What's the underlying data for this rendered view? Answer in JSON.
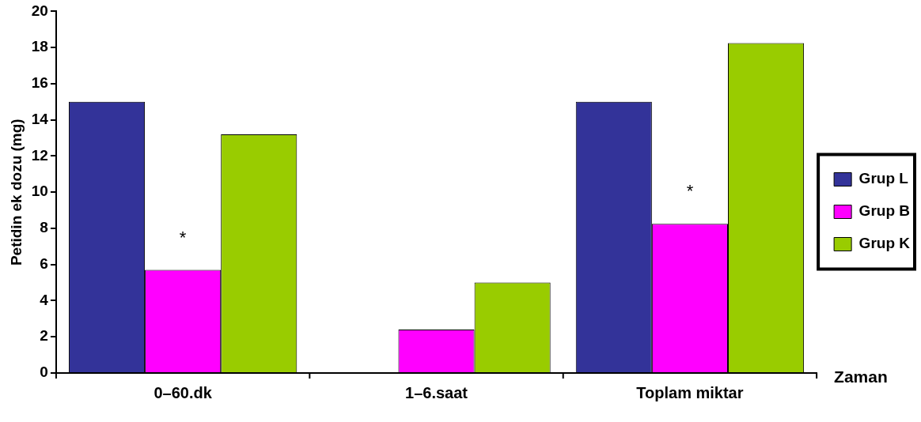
{
  "chart_data": {
    "type": "bar",
    "xlabel": "Zaman",
    "ylabel": "Petidin ek dozu (mg)",
    "categories": [
      "0–60.dk",
      "1–6.saat",
      "Toplam miktar"
    ],
    "series": [
      {
        "name": "Grup L",
        "color": "#333399",
        "values": [
          15.0,
          0,
          15.0
        ]
      },
      {
        "name": "Grup B",
        "color": "#ff00ff",
        "values": [
          5.7,
          2.4,
          8.25
        ]
      },
      {
        "name": "Grup K",
        "color": "#99cc00",
        "values": [
          13.2,
          5.0,
          18.25
        ]
      }
    ],
    "ylim": [
      0,
      20
    ],
    "yticks": [
      0,
      2,
      4,
      6,
      8,
      10,
      12,
      14,
      16,
      18,
      20
    ],
    "grid": false,
    "legend": "right",
    "annotations": [
      {
        "text": "*",
        "x": "0–60.dk",
        "y": 5.7
      },
      {
        "text": "*",
        "x": "Toplam miktar",
        "y": 8.25
      }
    ]
  }
}
